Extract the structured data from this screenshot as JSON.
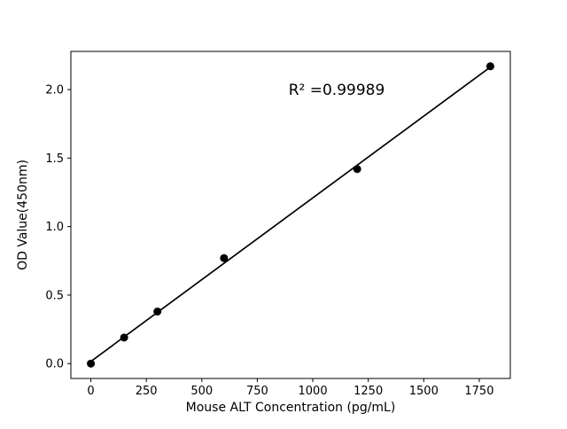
{
  "chart_data": {
    "type": "scatter",
    "title": "",
    "xlabel": "Mouse ALT Concentration (pg/mL)",
    "ylabel": "OD Value(450nm)",
    "annotation": "R² =0.99989",
    "x": [
      0,
      150,
      300,
      600,
      1200,
      1800
    ],
    "y": [
      0.0,
      0.19,
      0.38,
      0.77,
      1.42,
      2.17
    ],
    "trendline": {
      "x": [
        0,
        1800
      ],
      "y": [
        0.016,
        2.164
      ]
    },
    "xlim": [
      -90,
      1890
    ],
    "ylim": [
      -0.1085,
      2.2785
    ],
    "xticks": [
      0,
      250,
      500,
      750,
      1000,
      1250,
      1500,
      1750
    ],
    "yticks": [
      0.0,
      0.5,
      1.0,
      1.5,
      2.0
    ],
    "grid": false,
    "legend": "none",
    "marker_color": "#000000",
    "line_color": "#000000",
    "background_color": "#ffffff"
  }
}
